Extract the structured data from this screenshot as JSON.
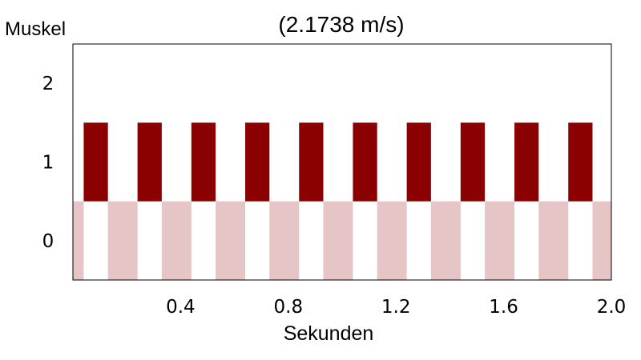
{
  "chart_data": {
    "type": "bar",
    "title": "(2.1738 m/s)",
    "ylabel": "Muskel",
    "xlabel": "Sekunden",
    "xlim": [
      0.0,
      2.0
    ],
    "ylim": [
      -0.5,
      2.5
    ],
    "x_ticks": [
      "0.4",
      "0.8",
      "1.2",
      "1.6",
      "2.0"
    ],
    "y_ticks": [
      "0",
      "1",
      "2"
    ],
    "grid": false,
    "colors": {
      "muscle_1": "#8b0000",
      "muscle_0": "#e5c5c5"
    },
    "series": [
      {
        "muscle": 1,
        "intervals": [
          [
            0.04,
            0.13
          ],
          [
            0.24,
            0.33
          ],
          [
            0.44,
            0.53
          ],
          [
            0.64,
            0.73
          ],
          [
            0.84,
            0.93
          ],
          [
            1.04,
            1.13
          ],
          [
            1.24,
            1.33
          ],
          [
            1.44,
            1.53
          ],
          [
            1.64,
            1.73
          ],
          [
            1.84,
            1.93
          ]
        ]
      },
      {
        "muscle": 0,
        "intervals": [
          [
            0.0,
            0.04
          ],
          [
            0.13,
            0.24
          ],
          [
            0.33,
            0.44
          ],
          [
            0.53,
            0.64
          ],
          [
            0.73,
            0.84
          ],
          [
            0.93,
            1.04
          ],
          [
            1.13,
            1.24
          ],
          [
            1.33,
            1.44
          ],
          [
            1.53,
            1.64
          ],
          [
            1.73,
            1.84
          ],
          [
            1.93,
            2.0
          ]
        ]
      }
    ]
  }
}
